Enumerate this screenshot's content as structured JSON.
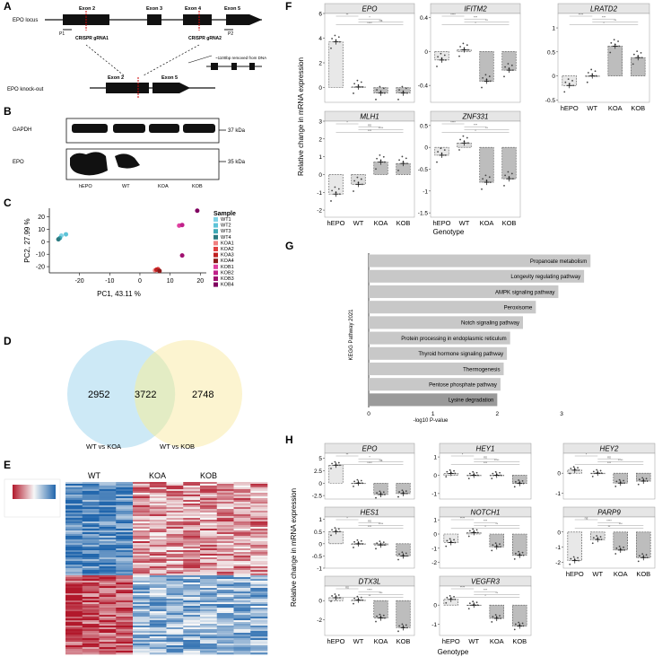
{
  "panels": {
    "A": "A",
    "B": "B",
    "C": "C",
    "D": "D",
    "E": "E",
    "F": "F",
    "G": "G",
    "H": "H"
  },
  "panelA": {
    "locus_label": "EPO locus",
    "ko_label": "EPO knock-out",
    "exons": [
      "Exon 1",
      "Exon 2",
      "Exon 3",
      "Exon 4",
      "Exon 5"
    ],
    "ko_exons": [
      "Exon 2",
      "Exon 5"
    ],
    "primers": [
      "P1",
      "P2"
    ],
    "grna": [
      "CRISPR gRNA1",
      "CRISPR gRNA2"
    ],
    "removed": "~1100bp removed from DNA"
  },
  "panelB": {
    "rows": [
      {
        "name": "GAPDH",
        "kda": "37 kDa"
      },
      {
        "name": "EPO",
        "kda": "35 kDa"
      }
    ],
    "lanes": [
      "hEPO",
      "WT",
      "KOA",
      "KOB"
    ]
  },
  "chart_data": [
    {
      "id": "C",
      "type": "scatter",
      "xlabel": "PC1, 43.11 %",
      "ylabel": "PC2, 27.99 %",
      "xticks": [
        -20,
        -10,
        0,
        10,
        20
      ],
      "yticks": [
        -20,
        -10,
        0,
        10,
        20
      ],
      "xlim": [
        -30,
        22
      ],
      "ylim": [
        -25,
        27
      ],
      "legend_title": "Sample",
      "series": [
        {
          "name": "WT1",
          "color": "#7fd3e6",
          "points": [
            [
              -26,
              5
            ]
          ]
        },
        {
          "name": "WT2",
          "color": "#5ec4d8",
          "points": [
            [
              -24.5,
              6
            ]
          ]
        },
        {
          "name": "WT3",
          "color": "#3fa9b5",
          "points": [
            [
              -26.5,
              3
            ]
          ]
        },
        {
          "name": "WT4",
          "color": "#2b7a80",
          "points": [
            [
              -27,
              2
            ]
          ]
        },
        {
          "name": "KOA1",
          "color": "#f08080",
          "points": [
            [
              5,
              -23
            ]
          ]
        },
        {
          "name": "KOA2",
          "color": "#e04040",
          "points": [
            [
              6,
              -22
            ]
          ]
        },
        {
          "name": "KOA3",
          "color": "#c02020",
          "points": [
            [
              5.5,
              -22.5
            ]
          ]
        },
        {
          "name": "KOA4",
          "color": "#8b1a1a",
          "points": [
            [
              6.5,
              -23.5
            ]
          ]
        },
        {
          "name": "KOB1",
          "color": "#e040a0",
          "points": [
            [
              13,
              13
            ]
          ]
        },
        {
          "name": "KOB2",
          "color": "#c0208a",
          "points": [
            [
              14,
              13.5
            ]
          ]
        },
        {
          "name": "KOB3",
          "color": "#a01070",
          "points": [
            [
              14,
              -11
            ]
          ]
        },
        {
          "name": "KOB4",
          "color": "#800060",
          "points": [
            [
              19,
              25
            ]
          ]
        }
      ]
    },
    {
      "id": "D",
      "type": "venn",
      "sets": [
        {
          "name": "WT vs KOA",
          "only": 2952
        },
        {
          "name": "WT vs KOB",
          "only": 2748
        }
      ],
      "intersection": 3722
    },
    {
      "id": "E",
      "type": "heatmap",
      "columns": [
        "WT",
        "KOA",
        "KOB"
      ],
      "color_scale": [
        "#b2182b",
        "#f7f7f7",
        "#2166ac"
      ]
    },
    {
      "id": "F",
      "type": "bar",
      "ylabel": "Relative change in mRNA expression",
      "xlabel": "Genotype",
      "categories": [
        "hEPO",
        "WT",
        "KOA",
        "KOB"
      ],
      "genes": [
        {
          "name": "EPO",
          "values": [
            3.7,
            0.05,
            -0.45,
            -0.45
          ],
          "ylim": [
            -1.2,
            6
          ],
          "yticks": [
            0,
            2,
            4,
            6
          ]
        },
        {
          "name": "IFITM2",
          "values": [
            -0.1,
            0.02,
            -0.35,
            -0.22
          ],
          "ylim": [
            -0.6,
            0.45
          ],
          "yticks": [
            -0.4,
            0,
            0.4
          ]
        },
        {
          "name": "LRATD2",
          "values": [
            -0.2,
            0.0,
            0.62,
            0.38
          ],
          "ylim": [
            -0.55,
            1.3
          ],
          "yticks": [
            -0.5,
            0,
            0.5,
            1
          ]
        },
        {
          "name": "MLH1",
          "values": [
            -1.1,
            -0.55,
            0.7,
            0.62
          ],
          "ylim": [
            -2.4,
            3
          ],
          "yticks": [
            -2,
            -1,
            0,
            1,
            2,
            3
          ]
        },
        {
          "name": "ZNF331",
          "values": [
            -0.18,
            0.1,
            -0.8,
            -0.72
          ],
          "ylim": [
            -1.6,
            0.6
          ],
          "yticks": [
            -1.5,
            -1,
            -0.5,
            0,
            0.5
          ]
        }
      ],
      "sig": [
        "ns",
        "****",
        "***",
        "**",
        "*"
      ]
    },
    {
      "id": "G",
      "type": "hbar",
      "ylabel": "KEGG Pathway 2021",
      "xlabel": "-log10 P-value",
      "xticks": [
        0,
        1,
        2,
        3
      ],
      "xlim": [
        0,
        3.6
      ],
      "categories": [
        "Propanoate metabolism",
        "Longevity regulating pathway",
        "AMPK signaling pathway",
        "Peroxisome",
        "Notch signaling pathway",
        "Protein processing in endoplasmic reticulum",
        "Thyroid hormone signaling pathway",
        "Thermogenesis",
        "Pentose phosphate pathway",
        "Lysine degradation"
      ],
      "values": [
        3.45,
        3.35,
        2.95,
        2.6,
        2.4,
        2.2,
        2.15,
        2.1,
        2.05,
        2.0
      ]
    },
    {
      "id": "H",
      "type": "bar",
      "ylabel": "Relative change in mRNA expression",
      "xlabel": "Genotype",
      "categories": [
        "hEPO",
        "WT",
        "KOA",
        "KOB"
      ],
      "genes": [
        {
          "name": "EPO",
          "values": [
            3.6,
            0.0,
            -2.3,
            -2.1
          ],
          "ylim": [
            -3.2,
            6
          ],
          "yticks": [
            -2.5,
            0,
            2.5,
            5,
            7.5
          ]
        },
        {
          "name": "HEY1",
          "values": [
            0.1,
            0.0,
            0.0,
            -0.45
          ],
          "ylim": [
            -1.3,
            1.2
          ],
          "yticks": [
            -1,
            0,
            1
          ]
        },
        {
          "name": "HEY2",
          "values": [
            0.15,
            0.0,
            -0.5,
            -0.4
          ],
          "ylim": [
            -1.3,
            1.0
          ],
          "yticks": [
            -1,
            0
          ]
        },
        {
          "name": "HES1",
          "values": [
            0.5,
            0.0,
            -0.05,
            -0.5
          ],
          "ylim": [
            -1.0,
            1.1
          ],
          "yticks": [
            -1,
            -0.5,
            0,
            0.5,
            1
          ]
        },
        {
          "name": "NOTCH1",
          "values": [
            -0.6,
            0.1,
            -0.9,
            -1.5
          ],
          "ylim": [
            -2.4,
            1.2
          ],
          "yticks": [
            -2,
            -1,
            0,
            1
          ]
        },
        {
          "name": "PARP9",
          "values": [
            -1.9,
            -0.5,
            -1.2,
            -1.7
          ],
          "ylim": [
            -2.4,
            1.0
          ],
          "yticks": [
            -2,
            -1,
            0
          ]
        },
        {
          "name": "DTX3L",
          "values": [
            0.3,
            0.05,
            -1.8,
            -2.8
          ],
          "ylim": [
            -3.6,
            1.5
          ],
          "yticks": [
            -2,
            0
          ]
        },
        {
          "name": "VEGFR3",
          "values": [
            0.3,
            0.0,
            -0.7,
            -1.1
          ],
          "ylim": [
            -1.6,
            1.0
          ],
          "yticks": [
            -1,
            0
          ]
        }
      ],
      "sig": [
        "ns",
        "****",
        "***",
        "**",
        "*"
      ]
    }
  ],
  "colors": {
    "bar_hepo": "#e8e8e8",
    "bar_wt": "#dcdcdc",
    "bar_ko": "#bdbdbd",
    "venn_a": "#cde9f6",
    "venn_b": "#fbf2c8",
    "venn_mid": "#e3ecc4"
  }
}
